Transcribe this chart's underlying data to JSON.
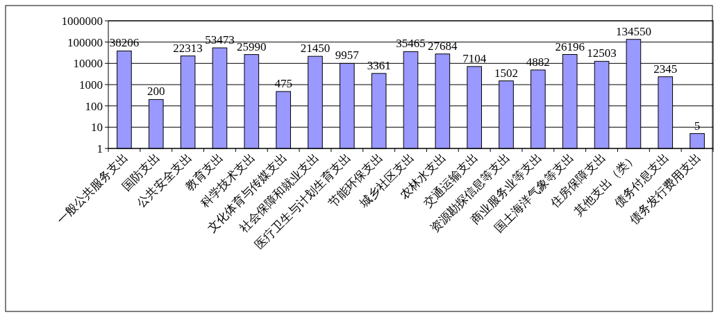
{
  "chart_data": {
    "type": "bar",
    "categories": [
      "一般公共服务支出",
      "国防支出",
      "公共安全支出",
      "教育支出",
      "科学技术支出",
      "文化体育与传媒支出",
      "社会保障和就业支出",
      "医疗卫生与计划生育支出",
      "节能环保支出",
      "城乡社区支出",
      "农林水支出",
      "交通运输支出",
      "资源勘探信息等支出",
      "商业服务业等支出",
      "国土海洋气象等支出",
      "住房保障支出",
      "其他支出（类）",
      "债务付息支出",
      "债务发行费用支出"
    ],
    "values": [
      38206,
      200,
      22313,
      53473,
      25990,
      475,
      21450,
      9957,
      3361,
      35465,
      27684,
      7104,
      1502,
      4882,
      26196,
      12503,
      134550,
      2345,
      5
    ],
    "color": "#9999ff",
    "log": true,
    "ylim": [
      1,
      1000000
    ],
    "yticks": [
      1,
      10,
      100,
      1000,
      10000,
      100000,
      1000000
    ],
    "grid": "y",
    "data_labels": true
  }
}
